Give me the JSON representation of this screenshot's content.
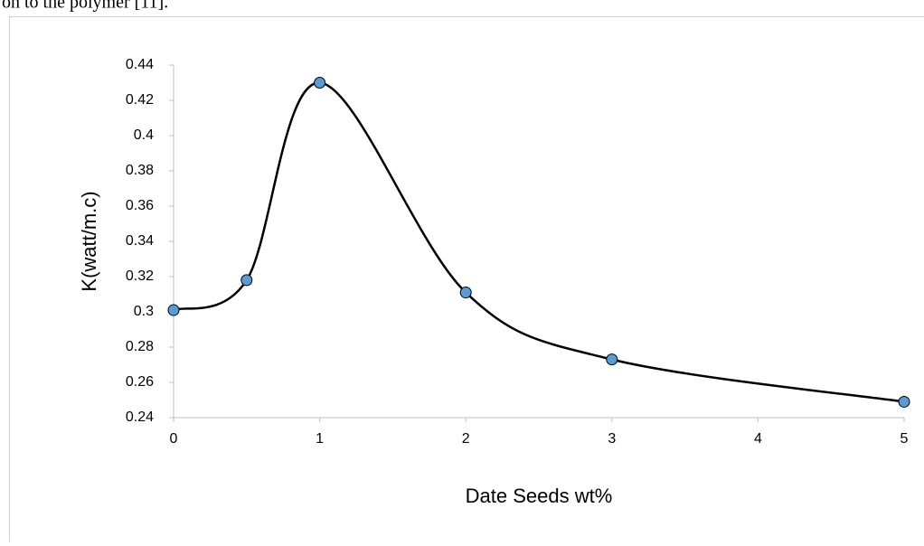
{
  "header_text": "on to the polymer [11].",
  "chart_data": {
    "type": "line",
    "x_label": "Date Seeds wt%",
    "y_label": "K(watt/m.c)",
    "x": [
      0,
      0.5,
      1,
      2,
      3,
      5
    ],
    "values": [
      0.301,
      0.318,
      0.43,
      0.311,
      0.273,
      0.249
    ],
    "color": "#000000",
    "marker_color": "#5b9bd5",
    "smooth": true,
    "xlim": [
      0,
      5
    ],
    "xticks": [
      0,
      1,
      2,
      3,
      4,
      5
    ],
    "ylim": [
      0.24,
      0.44
    ],
    "yticks": [
      0.24,
      0.26,
      0.28,
      0.3,
      0.32,
      0.34,
      0.36,
      0.38,
      0.4,
      0.42,
      0.44
    ],
    "grid": false
  }
}
